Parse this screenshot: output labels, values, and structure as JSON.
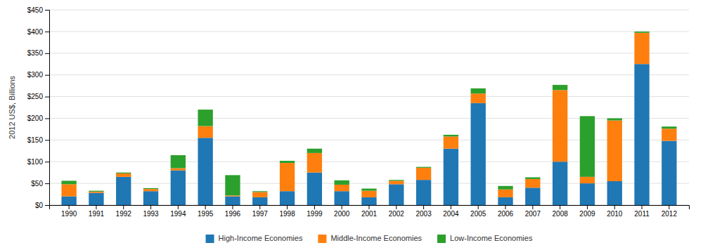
{
  "chart_data": {
    "type": "bar",
    "stacked": true,
    "categories": [
      "1990",
      "1991",
      "1992",
      "1993",
      "1994",
      "1995",
      "1996",
      "1997",
      "1998",
      "1999",
      "2000",
      "2001",
      "2002",
      "2003",
      "2004",
      "2005",
      "2006",
      "2007",
      "2008",
      "2009",
      "2010",
      "2011",
      "2012"
    ],
    "series": [
      {
        "name": "High-Income Economies",
        "values": [
          20,
          28,
          65,
          32,
          80,
          155,
          20,
          18,
          32,
          75,
          32,
          18,
          48,
          58,
          130,
          235,
          18,
          40,
          100,
          50,
          55,
          325,
          148
        ]
      },
      {
        "name": "Middle-Income Economies",
        "values": [
          28,
          3,
          8,
          5,
          5,
          27,
          2,
          12,
          65,
          45,
          15,
          15,
          8,
          28,
          28,
          22,
          18,
          20,
          165,
          15,
          140,
          72,
          28
        ]
      },
      {
        "name": "Low-Income Economies",
        "values": [
          8,
          2,
          2,
          2,
          30,
          38,
          47,
          2,
          5,
          10,
          10,
          5,
          2,
          2,
          4,
          12,
          8,
          4,
          12,
          140,
          5,
          3,
          5
        ]
      }
    ],
    "y_label": "2012 US$, Billions",
    "ylim": [
      0,
      450
    ],
    "yticks": [
      {
        "value": 0,
        "label": "$0"
      },
      {
        "value": 50,
        "label": "$50"
      },
      {
        "value": 100,
        "label": "$100"
      },
      {
        "value": 150,
        "label": "$150"
      },
      {
        "value": 200,
        "label": "$200"
      },
      {
        "value": 250,
        "label": "$250"
      },
      {
        "value": 300,
        "label": "$300"
      },
      {
        "value": 350,
        "label": "$350"
      },
      {
        "value": 400,
        "label": "$400"
      },
      {
        "value": 450,
        "label": "$450"
      }
    ],
    "grid": true,
    "legend": "bottom"
  }
}
